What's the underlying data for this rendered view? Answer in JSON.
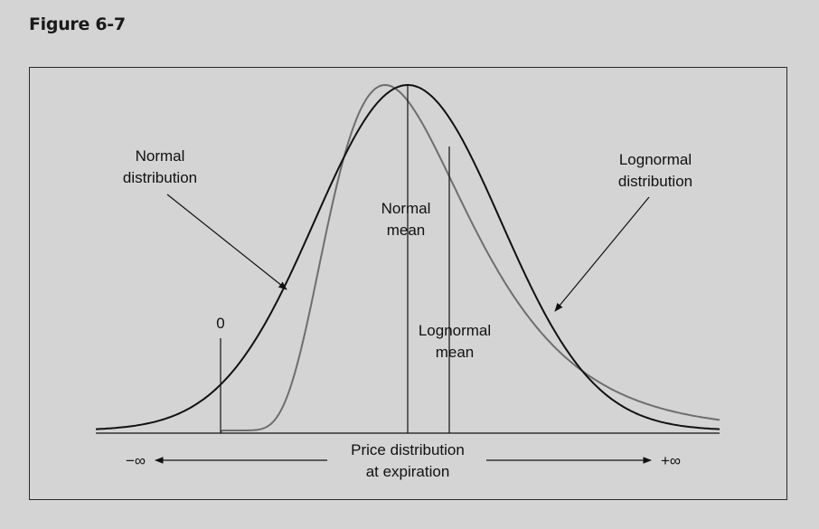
{
  "figure": {
    "label": "Figure 6-7"
  },
  "labels": {
    "normal_dist": [
      "Normal",
      "distribution"
    ],
    "lognormal_dist": [
      "Lognormal",
      "distribution"
    ],
    "normal_mean": [
      "Normal",
      "mean"
    ],
    "lognormal_mean": [
      "Lognormal",
      "mean"
    ],
    "zero": "0",
    "axis": [
      "Price distribution",
      "at expiration"
    ],
    "neg_inf": "−∞",
    "pos_inf": "+∞"
  },
  "colors": {
    "normal_curve": "#111111",
    "lognormal_curve": "#6e6e6e",
    "background": "#d4d4d4"
  }
}
